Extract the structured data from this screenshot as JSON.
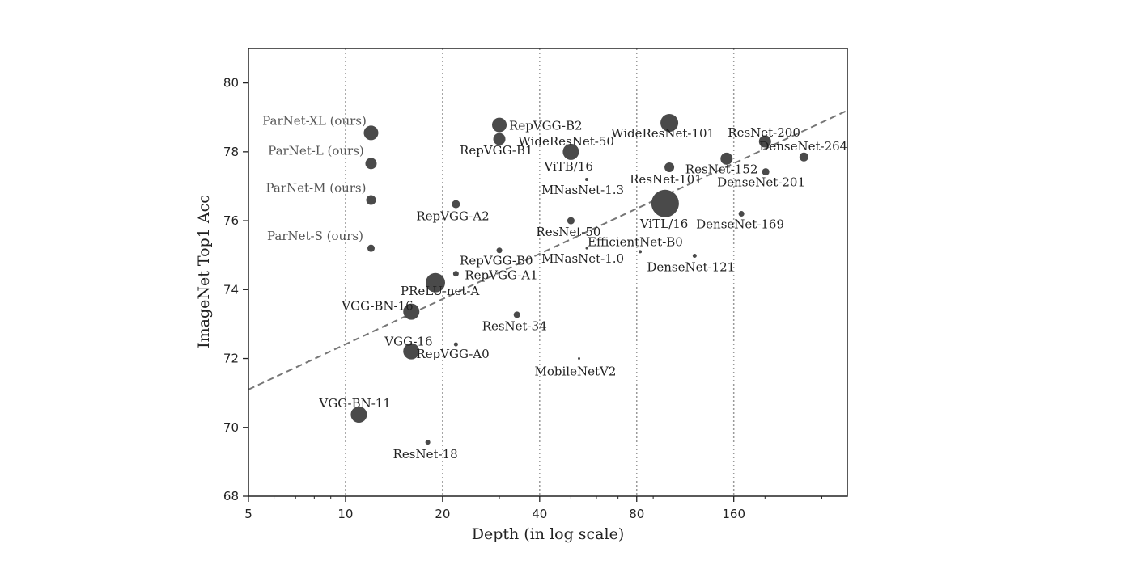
{
  "chart_data": {
    "type": "scatter",
    "xlabel": "Depth (in log scale)",
    "ylabel": "ImageNet Top1 Acc",
    "x_scale": "log",
    "xlim": [
      5,
      360
    ],
    "ylim": [
      68,
      81
    ],
    "x_ticks": [
      5,
      10,
      20,
      40,
      80,
      160
    ],
    "y_ticks": [
      68,
      70,
      72,
      74,
      76,
      78,
      80
    ],
    "grid": "vertical dotted at x ticks",
    "trend_line": {
      "style": "dashed",
      "from": [
        5,
        71.1
      ],
      "to": [
        360,
        79.2
      ]
    },
    "colors": {
      "marker": "#4a4a4a",
      "trend": "#777777",
      "grid": "#9a9a9a"
    },
    "points": [
      {
        "name": "ParNet-XL (ours)",
        "x": 12,
        "y": 78.55,
        "size": 9,
        "ours": true
      },
      {
        "name": "ParNet-L (ours)",
        "x": 12,
        "y": 77.66,
        "size": 7,
        "ours": true
      },
      {
        "name": "ParNet-M (ours)",
        "x": 12,
        "y": 76.6,
        "size": 6,
        "ours": true
      },
      {
        "name": "ParNet-S (ours)",
        "x": 12,
        "y": 75.2,
        "size": 4.5,
        "ours": true
      },
      {
        "name": "RepVGG-B2",
        "x": 30,
        "y": 78.78,
        "size": 9
      },
      {
        "name": "RepVGG-B1",
        "x": 30,
        "y": 78.37,
        "size": 7.5
      },
      {
        "name": "RepVGG-A2",
        "x": 22,
        "y": 76.48,
        "size": 5
      },
      {
        "name": "RepVGG-B0",
        "x": 30,
        "y": 75.14,
        "size": 3.5
      },
      {
        "name": "RepVGG-A1",
        "x": 22,
        "y": 74.46,
        "size": 3.5
      },
      {
        "name": "RepVGG-A0",
        "x": 22,
        "y": 72.41,
        "size": 2.5
      },
      {
        "name": "WideResNet-50",
        "x": 50,
        "y": 78.0,
        "size": 10
      },
      {
        "name": "WideResNet-101",
        "x": 101,
        "y": 78.84,
        "size": 11
      },
      {
        "name": "ResNet-200",
        "x": 200,
        "y": 78.3,
        "size": 7.5
      },
      {
        "name": "DenseNet-264",
        "x": 264,
        "y": 77.85,
        "size": 5.5
      },
      {
        "name": "ResNet-152",
        "x": 152,
        "y": 77.8,
        "size": 7.5
      },
      {
        "name": "DenseNet-201",
        "x": 201,
        "y": 77.42,
        "size": 4.5
      },
      {
        "name": "ResNet-101",
        "x": 101,
        "y": 77.55,
        "size": 6
      },
      {
        "name": "ViTB/16",
        "x": 50,
        "y": 78.0,
        "size": 5
      },
      {
        "name": "MNasNet-1.3",
        "x": 56,
        "y": 77.2,
        "size": 2
      },
      {
        "name": "ViTL/16",
        "x": 98,
        "y": 76.5,
        "size": 17
      },
      {
        "name": "DenseNet-169",
        "x": 169,
        "y": 76.2,
        "size": 3.5
      },
      {
        "name": "ResNet-50",
        "x": 50,
        "y": 76.0,
        "size": 4.5
      },
      {
        "name": "EfficientNet-B0",
        "x": 82,
        "y": 75.1,
        "size": 2
      },
      {
        "name": "MNasNet-1.0",
        "x": 56,
        "y": 75.2,
        "size": 1.5
      },
      {
        "name": "DenseNet-121",
        "x": 121,
        "y": 74.98,
        "size": 2.5
      },
      {
        "name": "PReLU-net-A",
        "x": 19,
        "y": 74.2,
        "size": 12
      },
      {
        "name": "VGG-BN-16",
        "x": 16,
        "y": 73.36,
        "size": 10
      },
      {
        "name": "ResNet-34",
        "x": 34,
        "y": 73.27,
        "size": 4
      },
      {
        "name": "VGG-16",
        "x": 16,
        "y": 72.21,
        "size": 10
      },
      {
        "name": "MobileNetV2",
        "x": 53,
        "y": 72.0,
        "size": 1.5
      },
      {
        "name": "VGG-BN-11",
        "x": 11,
        "y": 70.37,
        "size": 10
      },
      {
        "name": "ResNet-18",
        "x": 18,
        "y": 69.57,
        "size": 3
      }
    ]
  }
}
